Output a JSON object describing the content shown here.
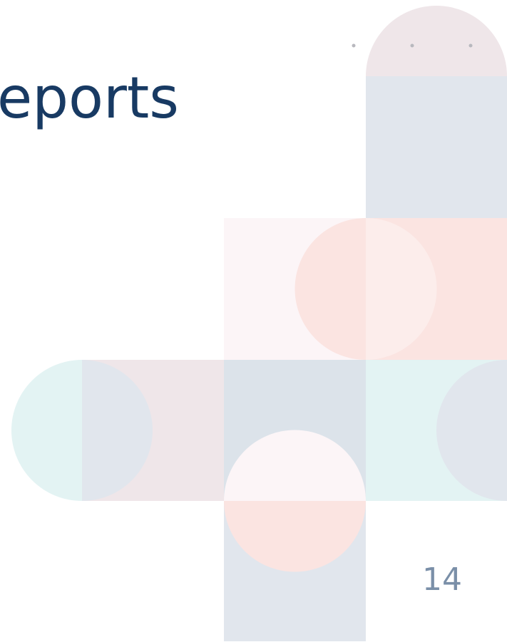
{
  "slide": {
    "title": "eports",
    "page_number": "14"
  }
}
